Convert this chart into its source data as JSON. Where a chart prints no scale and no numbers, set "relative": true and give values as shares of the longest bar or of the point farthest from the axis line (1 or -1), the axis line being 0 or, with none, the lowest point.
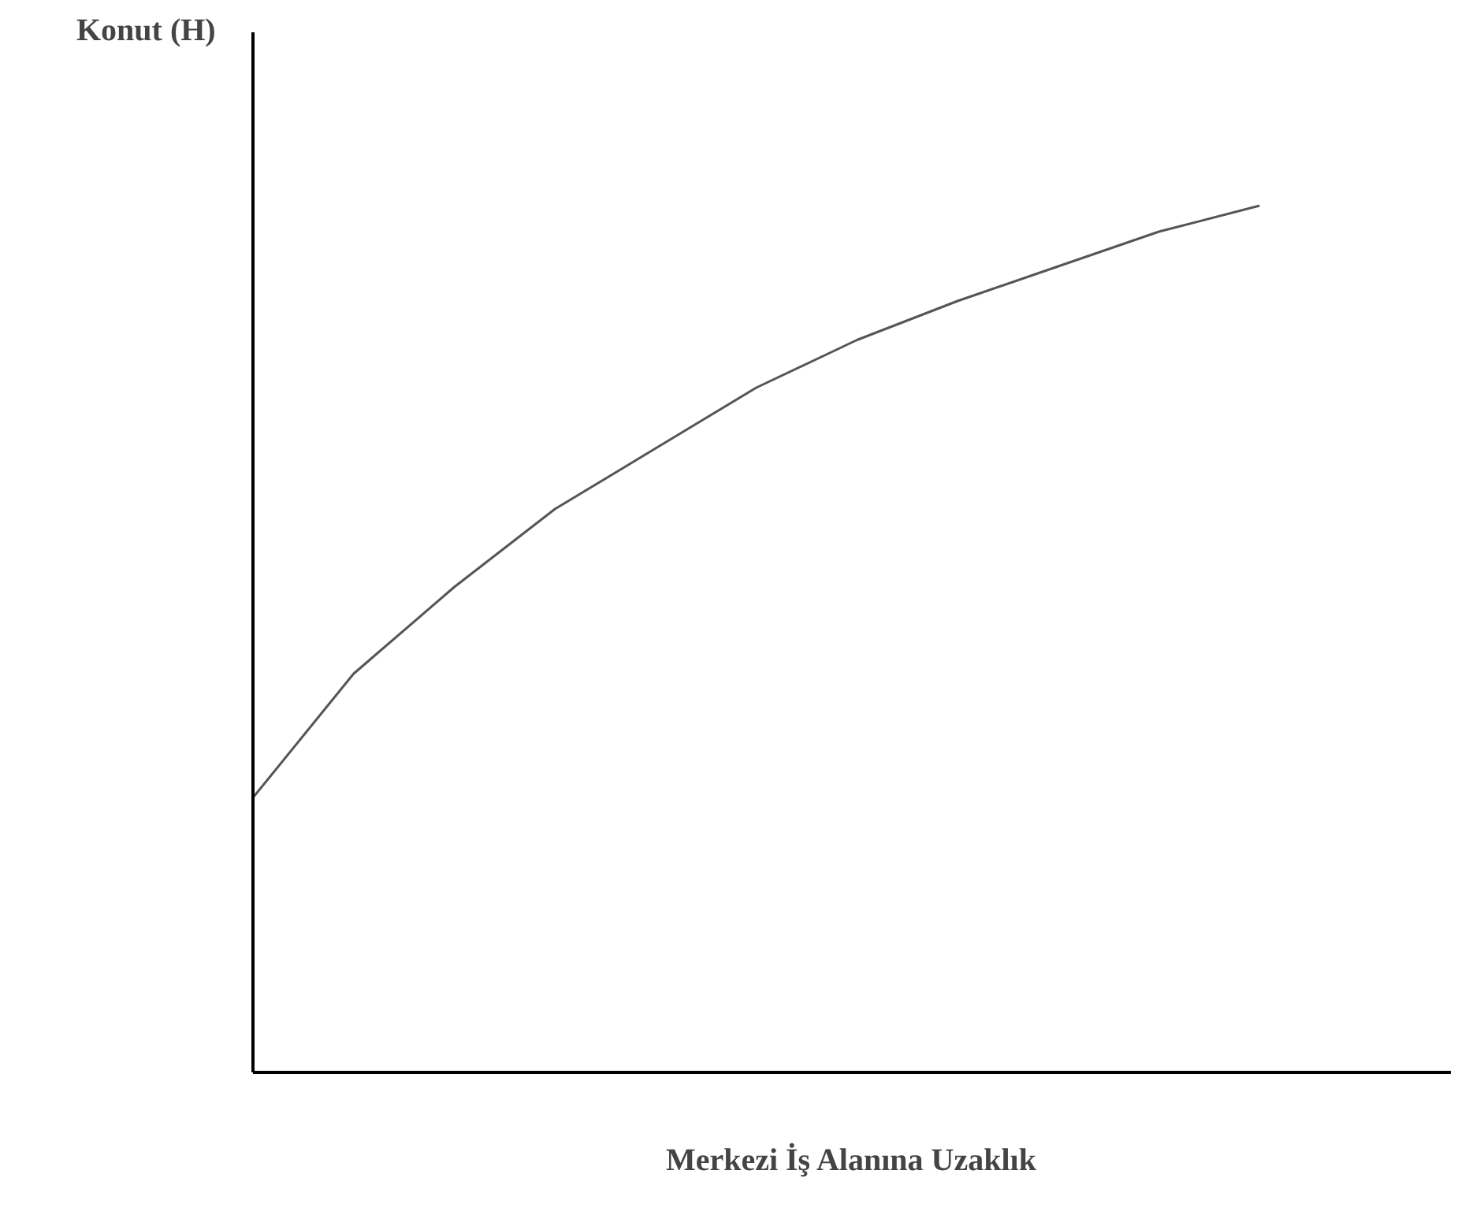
{
  "chart_data": {
    "type": "line",
    "relative": true,
    "xlabel": "Merkezi İş Alanına Uzaklık",
    "annotations": [
      "Konut (H)"
    ],
    "categories": [
      null,
      null,
      null,
      null,
      null,
      null,
      null,
      null,
      null,
      null,
      null,
      null
    ],
    "series": [
      {
        "color": "#555555",
        "values": [
          0.317,
          0.46,
          0.56,
          0.65,
          0.72,
          0.79,
          0.845,
          0.89,
          0.93,
          0.97,
          1.0,
          null
        ]
      }
    ],
    "marker": "none"
  }
}
